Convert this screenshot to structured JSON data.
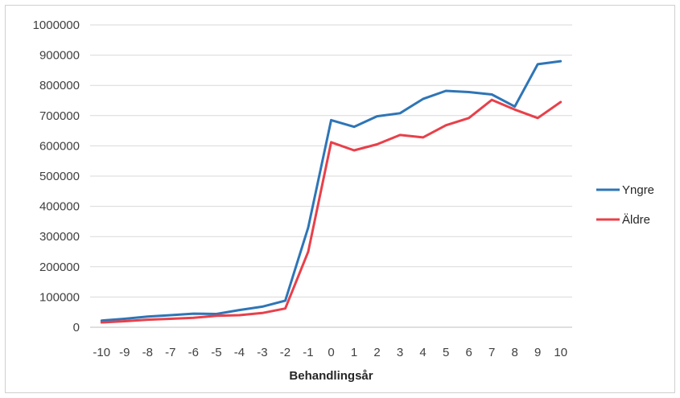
{
  "chart_data": {
    "type": "line",
    "title": "",
    "xlabel": "Behandlingsår",
    "ylabel": "",
    "x": [
      -10,
      -9,
      -8,
      -7,
      -6,
      -5,
      -4,
      -3,
      -2,
      -1,
      0,
      1,
      2,
      3,
      4,
      5,
      6,
      7,
      8,
      9,
      10
    ],
    "x_tick_labels": [
      "-10",
      "-9",
      "-8",
      "-7",
      "-6",
      "-5",
      "-4",
      "-3",
      "-2",
      "-1",
      "0",
      "1",
      "2",
      "3",
      "4",
      "5",
      "6",
      "7",
      "8",
      "9",
      "10"
    ],
    "y_tick_labels": [
      "0",
      "100000",
      "200000",
      "300000",
      "400000",
      "500000",
      "600000",
      "700000",
      "800000",
      "900000",
      "1000000"
    ],
    "ylim": [
      0,
      1000000
    ],
    "grid": true,
    "legend_position": "right",
    "series": [
      {
        "name": "Yngre",
        "color": "#2e75b6",
        "values": [
          22000,
          28000,
          35000,
          40000,
          45000,
          44000,
          57000,
          68000,
          88000,
          330000,
          685000,
          663000,
          698000,
          708000,
          755000,
          782000,
          778000,
          770000,
          730000,
          870000,
          880000
        ]
      },
      {
        "name": "Äldre",
        "color": "#e8404a",
        "values": [
          16000,
          20000,
          25000,
          28000,
          31000,
          38000,
          40000,
          47000,
          62000,
          250000,
          612000,
          585000,
          605000,
          636000,
          628000,
          668000,
          692000,
          752000,
          720000,
          692000,
          745000
        ]
      }
    ]
  }
}
